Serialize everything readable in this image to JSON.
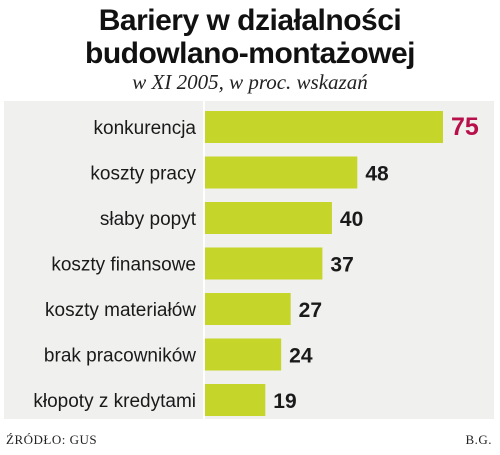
{
  "title_line1": "Bariery w działalności",
  "title_line2": "budowlano-montażowej",
  "subtitle": "w XI 2005, w proc. wskazań",
  "source": "ŹRÓDŁO: GUS",
  "author": "B.G.",
  "colors": {
    "bar": "#c6d52a",
    "highlight_value": "#b8104a",
    "panel": "#f0f0ef"
  },
  "chart_data": {
    "type": "bar",
    "orientation": "horizontal",
    "title": "Bariery w działalności budowlano-montażowej",
    "subtitle": "w XI 2005, w proc. wskazań",
    "categories": [
      "konkurencja",
      "koszty pracy",
      "słaby popyt",
      "koszty finansowe",
      "koszty materiałów",
      "brak pracowników",
      "kłopoty z kredytami"
    ],
    "values": [
      75,
      48,
      40,
      37,
      27,
      24,
      19
    ],
    "value_labels": [
      "75",
      "48",
      "40",
      "37",
      "27",
      "24",
      "19"
    ],
    "xlim": [
      0,
      75
    ],
    "grid": false,
    "legend": "none"
  }
}
